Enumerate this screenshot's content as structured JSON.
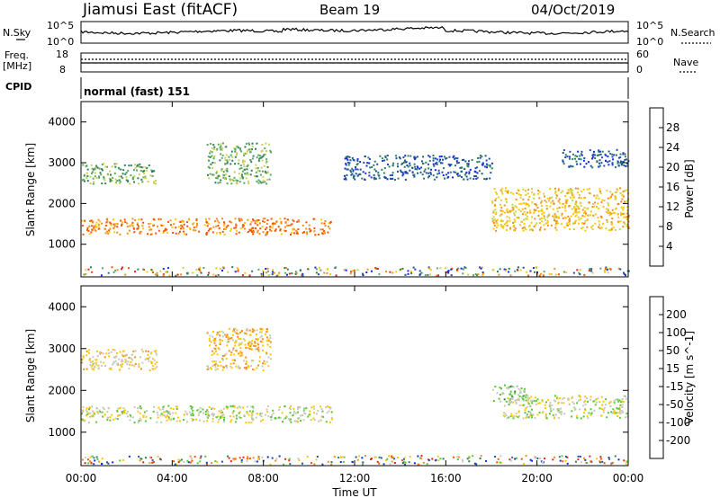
{
  "header": {
    "station": "Jiamusi East (fitACF)",
    "beam": "Beam 19",
    "date": "04/Oct/2019"
  },
  "top_panel": {
    "nsky_label": "N.Sky",
    "nsearch_label": "N.Search",
    "left_ticks": [
      "10^5",
      "10^0"
    ],
    "right_ticks": [
      "10^5",
      "10^0"
    ]
  },
  "freq_panel": {
    "freq_label": "Freq.",
    "freq_unit": "[MHz]",
    "nave_label": "Nave",
    "left_ticks": [
      "18",
      "8"
    ],
    "right_ticks": [
      "60",
      "0"
    ]
  },
  "cpid": {
    "label": "CPID",
    "mode": "normal (fast) 151"
  },
  "colors": {
    "power_scale": [
      "#1428e6",
      "#1e50a0",
      "#2e7d60",
      "#58a860",
      "#c8d050",
      "#ffc800",
      "#f09020",
      "#ff5000",
      "#e62314"
    ],
    "velocity_scale": [
      "#e62314",
      "#ff5000",
      "#f09020",
      "#ffc800",
      "#c8c8bc",
      "#58c832",
      "#2e7d60",
      "#1e50a0",
      "#1428e6"
    ]
  },
  "chart_data": [
    {
      "type": "heatmap",
      "name": "power",
      "xlabel": "",
      "ylabel": "Slant Range [km]",
      "x_range_hours": [
        0,
        24
      ],
      "ylim": [
        200,
        4500
      ],
      "yticks": [
        1000,
        2000,
        3000,
        4000
      ],
      "colorbar": {
        "label": "Power [dB]",
        "ticks": [
          "28",
          "24",
          "20",
          "16",
          "12",
          "8",
          "4"
        ],
        "range": [
          0,
          32
        ]
      },
      "regions": [
        {
          "t": [
            0,
            11.0
          ],
          "r": [
            1250,
            1650
          ],
          "value": 24
        },
        {
          "t": [
            0,
            3.3
          ],
          "r": [
            2500,
            3000
          ],
          "value": 12
        },
        {
          "t": [
            5.5,
            8.3
          ],
          "r": [
            2500,
            3500
          ],
          "value": 13
        },
        {
          "t": [
            11.5,
            18.0
          ],
          "r": [
            2600,
            3200
          ],
          "value": 6
        },
        {
          "t": [
            18.0,
            24.0
          ],
          "r": [
            1350,
            2400
          ],
          "value": 20
        },
        {
          "t": [
            21.0,
            24.0
          ],
          "r": [
            2900,
            3350
          ],
          "value": 6
        }
      ]
    },
    {
      "type": "heatmap",
      "name": "velocity",
      "xlabel": "Time UT",
      "ylabel": "Slant Range [km]",
      "x_range_hours": [
        0,
        24
      ],
      "xticks": [
        "00:00",
        "04:00",
        "08:00",
        "12:00",
        "16:00",
        "20:00",
        "00:00"
      ],
      "ylim": [
        200,
        4500
      ],
      "yticks": [
        1000,
        2000,
        3000,
        4000
      ],
      "colorbar": {
        "label": "Velocity [m s^-1]",
        "ticks": [
          "200",
          "100",
          "50",
          "15",
          "-15",
          "-50",
          "-100",
          "-200"
        ],
        "range": [
          -250,
          250
        ]
      },
      "regions": [
        {
          "t": [
            0,
            11.0
          ],
          "r": [
            1250,
            1650
          ],
          "value": 0
        },
        {
          "t": [
            0,
            3.3
          ],
          "r": [
            2500,
            3000
          ],
          "value": -40
        },
        {
          "t": [
            5.5,
            8.3
          ],
          "r": [
            2500,
            3500
          ],
          "value": -60
        },
        {
          "t": [
            18.0,
            19.5
          ],
          "r": [
            1750,
            2150
          ],
          "value": 40
        },
        {
          "t": [
            18.5,
            24.0
          ],
          "r": [
            1350,
            1900
          ],
          "value": 0
        }
      ]
    }
  ]
}
